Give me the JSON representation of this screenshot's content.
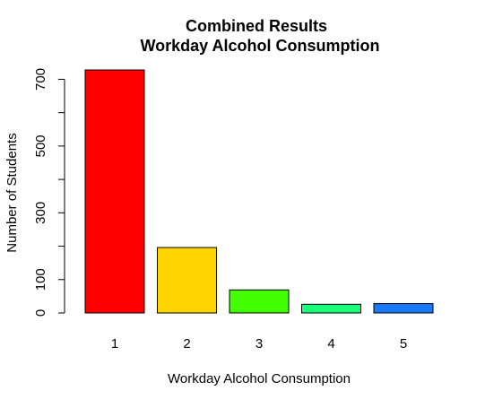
{
  "chart_data": {
    "type": "bar",
    "title": "Combined Results",
    "subtitle": "Workday Alcohol Consumption",
    "xlabel": "Workday Alcohol Consumption",
    "ylabel": "Number of Students",
    "categories": [
      "1",
      "2",
      "3",
      "4",
      "5"
    ],
    "values": [
      728,
      196,
      69,
      26,
      28
    ],
    "colors": [
      "#ff0000",
      "#ffd400",
      "#44ff00",
      "#1aff7a",
      "#1a7aff"
    ],
    "ylim": [
      0,
      728
    ],
    "yticks": [
      0,
      100,
      300,
      500,
      700
    ],
    "grid": false,
    "legend": "none"
  }
}
